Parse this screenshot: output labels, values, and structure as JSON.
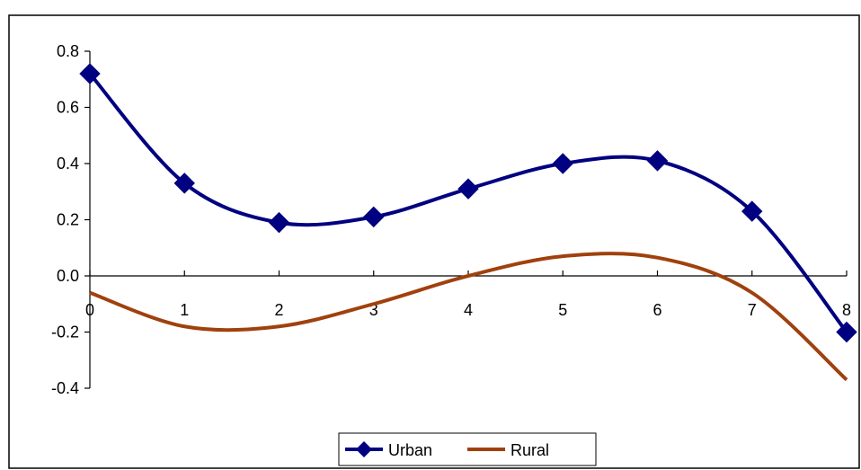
{
  "chart_data": {
    "type": "line",
    "title": "",
    "xlabel": "",
    "ylabel": "",
    "x": [
      0,
      1,
      2,
      3,
      4,
      5,
      6,
      7,
      8
    ],
    "x_ticks": [
      "0",
      "1",
      "2",
      "3",
      "4",
      "5",
      "6",
      "7",
      "8"
    ],
    "y_ticks": [
      "0.8",
      "0.6",
      "0.4",
      "0.2",
      "0.0",
      "-0.2",
      "-0.4"
    ],
    "xlim": [
      0,
      8
    ],
    "ylim": [
      -0.4,
      0.8
    ],
    "grid": false,
    "legend_position": "bottom-center",
    "smooth": true,
    "series": [
      {
        "name": "Urban",
        "color": "#000080",
        "markers": "diamond",
        "values": [
          0.72,
          0.33,
          0.19,
          0.21,
          0.31,
          0.4,
          0.41,
          0.23,
          -0.2
        ]
      },
      {
        "name": "Rural",
        "color": "#A0410D",
        "markers": "none",
        "values": [
          -0.06,
          -0.18,
          -0.18,
          -0.1,
          0.0,
          0.07,
          0.065,
          -0.06,
          -0.37
        ]
      }
    ]
  }
}
